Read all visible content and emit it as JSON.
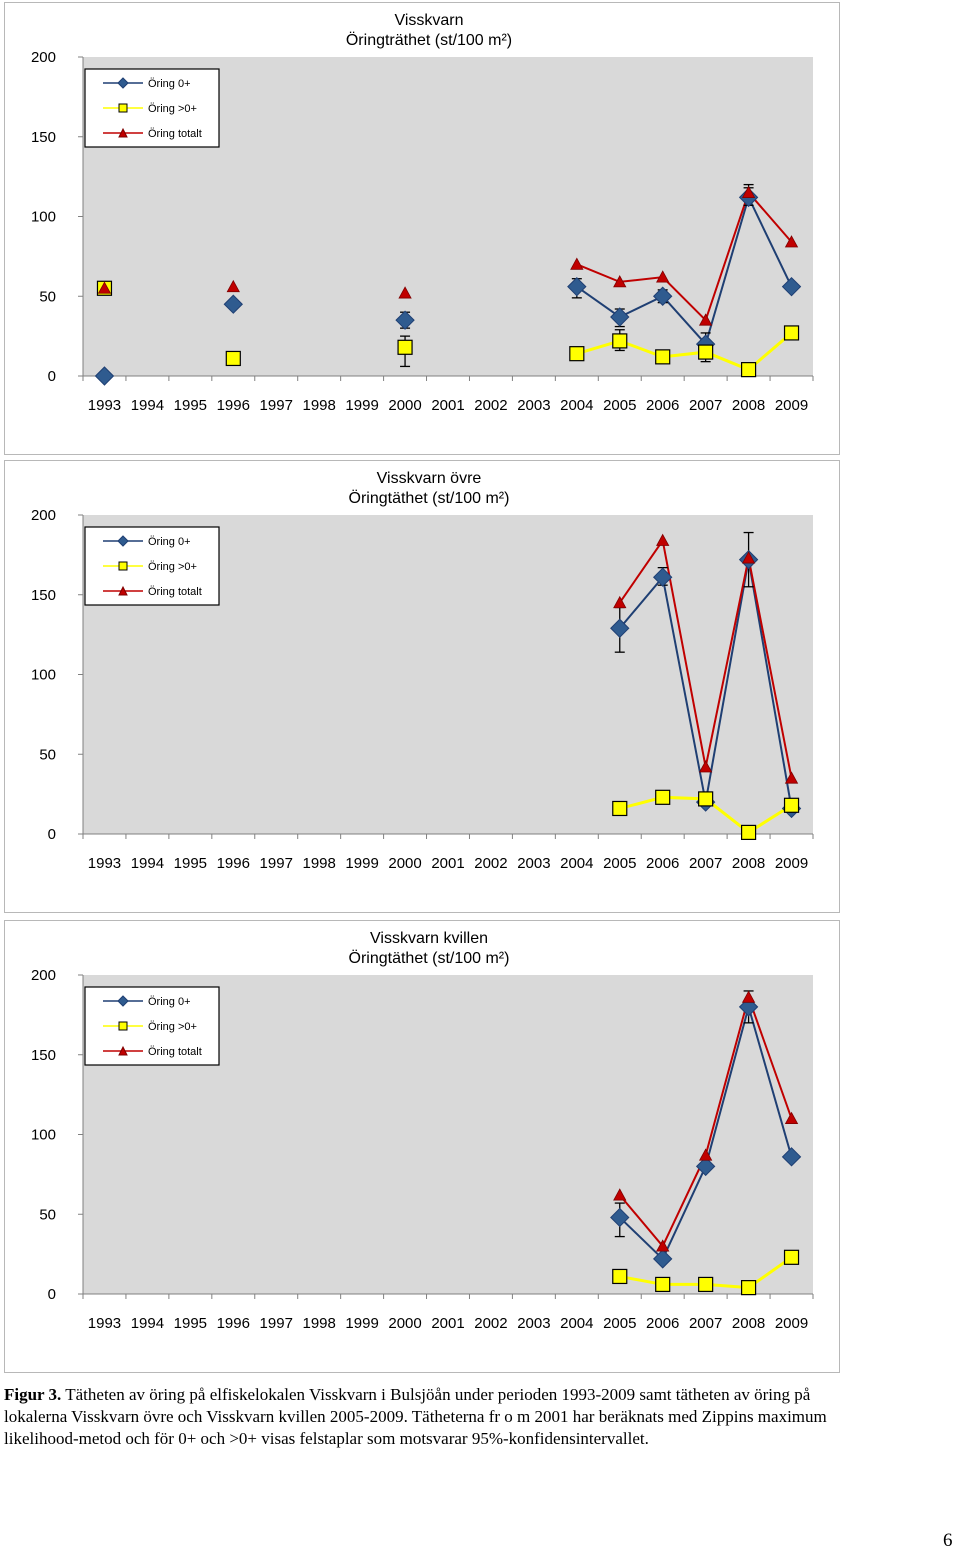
{
  "chart_data": [
    {
      "type": "line",
      "title_line1": "Visskvarn",
      "title_line2": "Öringträthet (st/100 m²)",
      "x": [
        1993,
        1994,
        1995,
        1996,
        1997,
        1998,
        1999,
        2000,
        2001,
        2002,
        2003,
        2004,
        2005,
        2006,
        2007,
        2008,
        2009
      ],
      "ylim": [
        0,
        200
      ],
      "yticks": [
        0,
        50,
        100,
        150,
        200
      ],
      "legend": "top-left",
      "series": [
        {
          "name": "Öring 0+",
          "color": "#1f3f73",
          "fill": "#2f5b8f",
          "marker": "diamond",
          "points": [
            [
              1993,
              0
            ],
            [
              1996,
              45
            ],
            [
              2000,
              35
            ],
            [
              2004,
              56
            ],
            [
              2005,
              37
            ],
            [
              2006,
              50
            ],
            [
              2007,
              20
            ],
            [
              2008,
              112
            ],
            [
              2009,
              56
            ]
          ],
          "line_from": 2004,
          "errors": [
            [
              2000,
              30,
              40
            ],
            [
              2004,
              49,
              61
            ],
            [
              2005,
              31,
              42
            ],
            [
              2006,
              46,
              54
            ],
            [
              2007,
              13,
              27
            ],
            [
              2008,
              107,
              118
            ]
          ]
        },
        {
          "name": "Öring >0+",
          "color": "#ffff00",
          "fill": "#ffff00",
          "marker": "square",
          "points": [
            [
              1993,
              55
            ],
            [
              1996,
              11
            ],
            [
              2000,
              18
            ],
            [
              2004,
              14
            ],
            [
              2005,
              22
            ],
            [
              2006,
              12
            ],
            [
              2007,
              15
            ],
            [
              2008,
              4
            ],
            [
              2009,
              27
            ]
          ],
          "line_from": 2004,
          "errors": [
            [
              2000,
              6,
              25
            ],
            [
              2005,
              16,
              29
            ],
            [
              2006,
              9,
              15
            ],
            [
              2007,
              9,
              20
            ]
          ]
        },
        {
          "name": "Öring totalt",
          "color": "#c00000",
          "fill": "#c00000",
          "marker": "triangle",
          "points": [
            [
              1993,
              55
            ],
            [
              1996,
              56
            ],
            [
              2000,
              52
            ],
            [
              2004,
              70
            ],
            [
              2005,
              59
            ],
            [
              2006,
              62
            ],
            [
              2007,
              35
            ],
            [
              2008,
              115
            ],
            [
              2009,
              84
            ]
          ],
          "line_from": 2004,
          "errors": [
            [
              2008,
              111,
              120
            ]
          ]
        }
      ]
    },
    {
      "type": "line",
      "title_line1": "Visskvarn övre",
      "title_line2": "Öringtäthet (st/100 m²)",
      "x": [
        1993,
        1994,
        1995,
        1996,
        1997,
        1998,
        1999,
        2000,
        2001,
        2002,
        2003,
        2004,
        2005,
        2006,
        2007,
        2008,
        2009
      ],
      "ylim": [
        0,
        200
      ],
      "yticks": [
        0,
        50,
        100,
        150,
        200
      ],
      "legend": "top-left",
      "series": [
        {
          "name": "Öring 0+",
          "color": "#1f3f73",
          "fill": "#2f5b8f",
          "marker": "diamond",
          "points": [
            [
              2005,
              129
            ],
            [
              2006,
              161
            ],
            [
              2007,
              20
            ],
            [
              2008,
              172
            ],
            [
              2009,
              16
            ]
          ],
          "line_from": 2005,
          "errors": [
            [
              2005,
              114,
              142
            ],
            [
              2006,
              156,
              167
            ],
            [
              2008,
              155,
              189
            ]
          ]
        },
        {
          "name": "Öring >0+",
          "color": "#ffff00",
          "fill": "#ffff00",
          "marker": "square",
          "points": [
            [
              2005,
              16
            ],
            [
              2006,
              23
            ],
            [
              2007,
              22
            ],
            [
              2008,
              1
            ],
            [
              2009,
              18
            ]
          ],
          "line_from": 2005,
          "errors": []
        },
        {
          "name": "Öring totalt",
          "color": "#c00000",
          "fill": "#c00000",
          "marker": "triangle",
          "points": [
            [
              2005,
              145
            ],
            [
              2006,
              184
            ],
            [
              2007,
              42
            ],
            [
              2008,
              173
            ],
            [
              2009,
              35
            ]
          ],
          "line_from": 2005,
          "errors": []
        }
      ]
    },
    {
      "type": "line",
      "title_line1": "Visskvarn kvillen",
      "title_line2": "Öringtäthet (st/100 m²)",
      "x": [
        1993,
        1994,
        1995,
        1996,
        1997,
        1998,
        1999,
        2000,
        2001,
        2002,
        2003,
        2004,
        2005,
        2006,
        2007,
        2008,
        2009
      ],
      "ylim": [
        0,
        200
      ],
      "yticks": [
        0,
        50,
        100,
        150,
        200
      ],
      "legend": "top-left",
      "series": [
        {
          "name": "Öring 0+",
          "color": "#1f3f73",
          "fill": "#2f5b8f",
          "marker": "diamond",
          "points": [
            [
              2005,
              48
            ],
            [
              2006,
              22
            ],
            [
              2007,
              80
            ],
            [
              2008,
              180
            ],
            [
              2009,
              86
            ]
          ],
          "line_from": 2005,
          "errors": [
            [
              2005,
              36,
              57
            ],
            [
              2008,
              170,
              190
            ]
          ]
        },
        {
          "name": "Öring >0+",
          "color": "#ffff00",
          "fill": "#ffff00",
          "marker": "square",
          "points": [
            [
              2005,
              11
            ],
            [
              2006,
              6
            ],
            [
              2007,
              6
            ],
            [
              2008,
              4
            ],
            [
              2009,
              23
            ]
          ],
          "line_from": 2005,
          "errors": []
        },
        {
          "name": "Öring totalt",
          "color": "#c00000",
          "fill": "#c00000",
          "marker": "triangle",
          "points": [
            [
              2005,
              62
            ],
            [
              2006,
              30
            ],
            [
              2007,
              87
            ],
            [
              2008,
              186
            ],
            [
              2009,
              110
            ]
          ],
          "line_from": 2005,
          "errors": []
        }
      ]
    }
  ],
  "caption": {
    "label": "Figur 3.",
    "text": " Tätheten av öring på elfiskelokalen Visskvarn i Bulsjöån under perioden 1993-2009 samt tätheten av öring på lokalerna Visskvarn övre och Visskvarn kvillen 2005-2009. Tätheterna fr o m 2001 har beräknats med Zippins maximum likelihood-metod och för 0+ och >0+ visas felstaplar som motsvarar 95%-konfidensintervallet."
  },
  "page_number": "6"
}
